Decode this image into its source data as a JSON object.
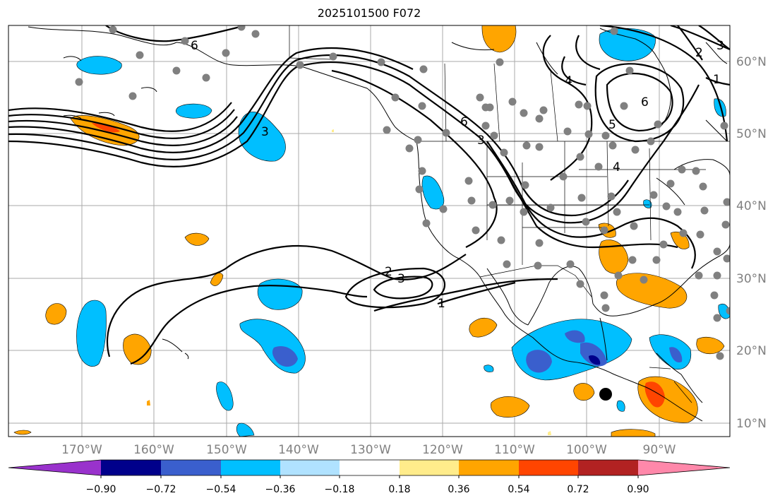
{
  "title": "2025101500 F072",
  "map": {
    "lat_labels": [
      "60°N",
      "50°N",
      "40°N",
      "30°N",
      "20°N",
      "10°N"
    ],
    "lon_labels": [
      "170°W",
      "160°W",
      "150°W",
      "140°W",
      "130°W",
      "120°W",
      "110°W",
      "100°W",
      "90°W"
    ],
    "contour_labels": [
      "6",
      "3",
      "6",
      "3",
      "4",
      "6",
      "5",
      "4",
      "3",
      "2",
      "1",
      "2",
      "3",
      "1"
    ],
    "contour_color": "#000000",
    "station_color": "#808080",
    "marker_color": "#000000"
  },
  "colorbar": {
    "tick_labels": [
      "−0.90",
      "−0.72",
      "−0.54",
      "−0.36",
      "−0.18",
      "0.18",
      "0.36",
      "0.54",
      "0.72",
      "0.90"
    ],
    "colors": [
      "#9932CC",
      "#00008B",
      "#3A5FCD",
      "#00BFFF",
      "#B0E2FF",
      "#FFFFFF",
      "#FFEC8B",
      "#FFA500",
      "#FF4500",
      "#B22222",
      "#FF88AA"
    ]
  }
}
